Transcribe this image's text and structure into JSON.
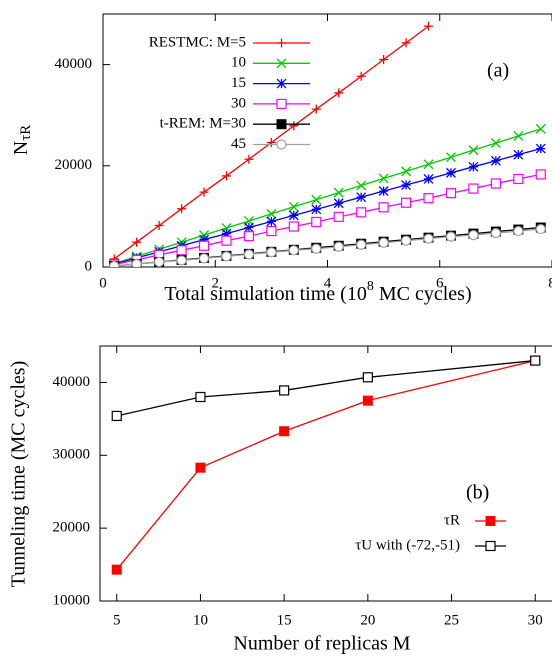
{
  "chart_data": [
    {
      "type": "line",
      "ylabel": "N",
      "ylabel_sub": "τR",
      "xlabel": "Total simulation time (10",
      "xlabel_sup": "8",
      "xlabel_end": " MC cycles)",
      "annotation": "(a)",
      "xlim": [
        0,
        8
      ],
      "ylim": [
        0,
        50000
      ],
      "xticks": [
        0,
        2,
        4,
        6,
        8
      ],
      "yticks": [
        0,
        20000,
        40000
      ],
      "x": [
        0.2,
        0.6,
        1.0,
        1.4,
        1.8,
        2.2,
        2.6,
        3.0,
        3.4,
        3.8,
        4.2,
        4.6,
        5.0,
        5.4,
        5.8,
        6.2,
        6.6,
        7.0,
        7.4,
        7.8
      ],
      "series": [
        {
          "name": "RESTMC: M=5",
          "color": "#ff0000",
          "marker": "plus",
          "values": [
            1600,
            4900,
            8200,
            11500,
            14800,
            18000,
            21300,
            24600,
            27900,
            31200,
            34400,
            37700,
            41000,
            44300,
            47600,
            null,
            null,
            null,
            null,
            null
          ]
        },
        {
          "name": "10",
          "color": "#00cc00",
          "marker": "cross",
          "values": [
            700,
            2100,
            3500,
            4900,
            6300,
            7700,
            9100,
            10500,
            11900,
            13300,
            14700,
            16100,
            17500,
            18900,
            20300,
            21700,
            23100,
            24500,
            25900,
            27300
          ]
        },
        {
          "name": "15",
          "color": "#0000ff",
          "marker": "star",
          "values": [
            600,
            1800,
            3000,
            4200,
            5400,
            6600,
            7800,
            9000,
            10200,
            11400,
            12600,
            13800,
            15000,
            16200,
            17400,
            18600,
            19800,
            21000,
            22200,
            23400
          ]
        },
        {
          "name": "30",
          "color": "#ff00ff",
          "marker": "square",
          "values": [
            500,
            1400,
            2400,
            3300,
            4200,
            5200,
            6100,
            7100,
            8000,
            8900,
            9900,
            10800,
            11800,
            12700,
            13600,
            14600,
            15500,
            16500,
            17400,
            18300
          ]
        },
        {
          "name": "t-REM: M=30",
          "color": "#000000",
          "marker": "filled-square",
          "values": [
            200,
            600,
            1000,
            1400,
            1800,
            2200,
            2600,
            3000,
            3400,
            3800,
            4200,
            4600,
            5000,
            5400,
            5800,
            6200,
            6600,
            7000,
            7400,
            7800
          ]
        },
        {
          "name": "45",
          "color": "#a0a0a0",
          "marker": "circle",
          "values": [
            200,
            600,
            1000,
            1300,
            1700,
            2100,
            2500,
            2900,
            3300,
            3600,
            4000,
            4400,
            4800,
            5200,
            5600,
            6000,
            6300,
            6700,
            7100,
            7500
          ]
        }
      ]
    },
    {
      "type": "line",
      "ylabel": "Tunneling time (MC cycles)",
      "xlabel": "Number of replicas M",
      "annotation": "(b)",
      "xlim": [
        4,
        31
      ],
      "ylim": [
        10000,
        45000
      ],
      "xticks": [
        5,
        10,
        15,
        20,
        25,
        30
      ],
      "yticks": [
        10000,
        20000,
        30000,
        40000
      ],
      "x": [
        5,
        10,
        15,
        20,
        30
      ],
      "series": [
        {
          "name": "τR",
          "color": "#ff0000",
          "marker": "filled-square",
          "values": [
            14300,
            28300,
            33300,
            37500,
            43000
          ]
        },
        {
          "name": "τU with (-72,-51)",
          "color": "#000000",
          "marker": "square",
          "values": [
            35400,
            38000,
            38900,
            40700,
            43000
          ]
        }
      ]
    }
  ]
}
